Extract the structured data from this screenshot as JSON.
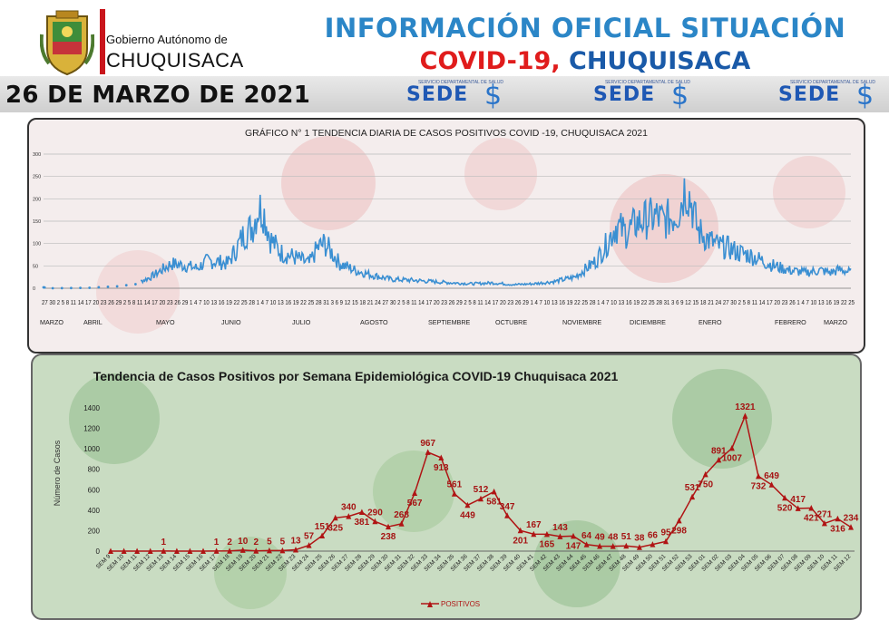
{
  "header": {
    "gob_label": "Gobierno Autónomo de",
    "dep_label": "CHUQUISACA",
    "title_line1": "INFORMACIÓN OFICIAL SITUACIÓN",
    "title_line2_red": "COVID-19,",
    "title_line2_blue": " CHUQUISACA",
    "date": "26 DE MARZO DE 2021",
    "sedes_label": "SEDE",
    "sedes_symbol": "$",
    "sedes_small": "SERVICIO DEPARTAMENTAL DE SALUD"
  },
  "colors": {
    "title_blue": "#2b86c7",
    "red": "#e01c1c",
    "line_blue": "#3a8fd2",
    "weekly_red": "#b01414"
  },
  "chart_data": [
    {
      "type": "line",
      "title": "GRÁFICO N° 1 TENDENCIA DIARIA DE CASOS POSITIVOS COVID -19, CHUQUISACA 2021",
      "ylim": [
        0,
        300
      ],
      "yticks": [
        "0",
        "50",
        "100",
        "150",
        "200",
        "250",
        "300"
      ],
      "grid": true,
      "months": [
        "MARZO",
        "ABRIL",
        "MAYO",
        "JUNIO",
        "JULIO",
        "AGOSTO",
        "SEPTIEMBRE",
        "OCTUBRE",
        "NOVIEMBRE",
        "DICIEMBRE",
        "ENERO",
        "FEBRERO",
        "MARZO"
      ],
      "day_ticks": "27 30 2 5 8 11 14 17 20 23 26 29 2 5 8 11 14 17 20 23 26 29 1 4 7 10 13 16 19 22 25 28 1 4 7 10 13 16 19 22 25 28 31 3 6 9 12 15 18 21 24 27 30 2 5 8 11 14 17 20 23 26 29 2 5 8 11 14 17 20 23 26 29 1 4 7 10 13 16 19 22 25 28 1 4 7 10 13 16 19 22 25 28 31 3 6 9 12 15 18 21 24 27 30 2 5 8 11 14 17 20 23 26 1 4 7 10 13 16 19 22 25",
      "anchors": [
        [
          0,
          2
        ],
        [
          8,
          0
        ],
        [
          45,
          1
        ],
        [
          60,
          3
        ],
        [
          78,
          5
        ],
        [
          95,
          15
        ],
        [
          105,
          25
        ],
        [
          115,
          40
        ],
        [
          125,
          55
        ],
        [
          140,
          50
        ],
        [
          150,
          45
        ],
        [
          160,
          60
        ],
        [
          170,
          60
        ],
        [
          180,
          55
        ],
        [
          188,
          85
        ],
        [
          196,
          120
        ],
        [
          205,
          140
        ],
        [
          210,
          180
        ],
        [
          215,
          175
        ],
        [
          222,
          110
        ],
        [
          232,
          80
        ],
        [
          245,
          70
        ],
        [
          260,
          55
        ],
        [
          268,
          90
        ],
        [
          275,
          100
        ],
        [
          282,
          80
        ],
        [
          290,
          55
        ],
        [
          305,
          40
        ],
        [
          320,
          30
        ],
        [
          340,
          20
        ],
        [
          360,
          18
        ],
        [
          380,
          15
        ],
        [
          400,
          12
        ],
        [
          420,
          10
        ],
        [
          440,
          12
        ],
        [
          460,
          8
        ],
        [
          480,
          10
        ],
        [
          500,
          15
        ],
        [
          520,
          25
        ],
        [
          540,
          60
        ],
        [
          550,
          95
        ],
        [
          560,
          140
        ],
        [
          570,
          125
        ],
        [
          580,
          145
        ],
        [
          590,
          155
        ],
        [
          600,
          160
        ],
        [
          607,
          150
        ],
        [
          615,
          160
        ],
        [
          622,
          175
        ],
        [
          628,
          230
        ],
        [
          633,
          200
        ],
        [
          640,
          130
        ],
        [
          650,
          110
        ],
        [
          660,
          95
        ],
        [
          670,
          90
        ],
        [
          680,
          80
        ],
        [
          690,
          75
        ],
        [
          700,
          65
        ],
        [
          715,
          50
        ],
        [
          730,
          40
        ],
        [
          745,
          35
        ],
        [
          760,
          40
        ],
        [
          770,
          35
        ],
        [
          780,
          42
        ],
        [
          790,
          35
        ]
      ]
    },
    {
      "type": "line",
      "title": "Tendencia de Casos Positivos por Semana Epidemiológica COVID-19 Chuquisaca 2021",
      "ylabel": "Número de Casos",
      "ylim": [
        0,
        1400
      ],
      "yticks": [
        "0",
        "200",
        "400",
        "600",
        "800",
        "1000",
        "1200",
        "1400"
      ],
      "legend": "POSITIVOS",
      "categories": [
        "SEM 9",
        "SEM 10",
        "SEM 11",
        "SEM 12",
        "SEM 13",
        "SEM 14",
        "SEM 15",
        "SEM 16",
        "SEM 17",
        "SEM 18",
        "SEM 19",
        "SEM 20",
        "SEM 21",
        "SEM 22",
        "SEM 23",
        "SEM 24",
        "SEM 25",
        "SEM 26",
        "SEM 27",
        "SEM 28",
        "SEM 29",
        "SEM 30",
        "SEM 31",
        "SEM 32",
        "SEM 33",
        "SEM 34",
        "SEM 35",
        "SEM 36",
        "SEM 37",
        "SEM 38",
        "SEM 39",
        "SEM 40",
        "SEM 41",
        "SEM 42",
        "SEM 43",
        "SEM 44",
        "SEM 45",
        "SEM 46",
        "SEM 47",
        "SEM 48",
        "SEM 49",
        "SEM 50",
        "SEM 51",
        "SEM 52",
        "SEM 53",
        "SEM 01",
        "SEM 02",
        "SEM 03",
        "SEM 04",
        "SEM 05",
        "SEM 06",
        "SEM 07",
        "SEM 08",
        "SEM 09",
        "SEM 10",
        "SEM 11",
        "SEM 12"
      ],
      "values": [
        0,
        0,
        0,
        0,
        1,
        0,
        0,
        0,
        1,
        2,
        10,
        2,
        5,
        5,
        13,
        57,
        151,
        325,
        340,
        381,
        290,
        238,
        268,
        567,
        967,
        913,
        561,
        449,
        512,
        581,
        347,
        201,
        167,
        165,
        143,
        147,
        64,
        49,
        48,
        51,
        38,
        66,
        95,
        298,
        531,
        750,
        891,
        1007,
        1321,
        732,
        649,
        520,
        417,
        421,
        271,
        316,
        234
      ],
      "labels": [
        {
          "i": 4,
          "t": "1"
        },
        {
          "i": 8,
          "t": "1"
        },
        {
          "i": 9,
          "t": "2"
        },
        {
          "i": 10,
          "t": "10"
        },
        {
          "i": 11,
          "t": "2"
        },
        {
          "i": 12,
          "t": "5"
        },
        {
          "i": 13,
          "t": "5"
        },
        {
          "i": 14,
          "t": "13"
        },
        {
          "i": 15,
          "t": "57"
        },
        {
          "i": 16,
          "t": "151"
        },
        {
          "i": 17,
          "t": "325"
        },
        {
          "i": 18,
          "t": "340"
        },
        {
          "i": 19,
          "t": "381"
        },
        {
          "i": 20,
          "t": "290"
        },
        {
          "i": 21,
          "t": "238"
        },
        {
          "i": 22,
          "t": "268"
        },
        {
          "i": 23,
          "t": "567"
        },
        {
          "i": 24,
          "t": "967"
        },
        {
          "i": 25,
          "t": "913"
        },
        {
          "i": 26,
          "t": "561"
        },
        {
          "i": 27,
          "t": "449"
        },
        {
          "i": 28,
          "t": "512"
        },
        {
          "i": 29,
          "t": "581"
        },
        {
          "i": 30,
          "t": "347"
        },
        {
          "i": 31,
          "t": "201"
        },
        {
          "i": 32,
          "t": "167"
        },
        {
          "i": 33,
          "t": "165"
        },
        {
          "i": 34,
          "t": "143"
        },
        {
          "i": 35,
          "t": "147"
        },
        {
          "i": 36,
          "t": "64"
        },
        {
          "i": 37,
          "t": "49"
        },
        {
          "i": 38,
          "t": "48"
        },
        {
          "i": 39,
          "t": "51"
        },
        {
          "i": 40,
          "t": "38"
        },
        {
          "i": 41,
          "t": "66"
        },
        {
          "i": 42,
          "t": "95"
        },
        {
          "i": 43,
          "t": "298"
        },
        {
          "i": 44,
          "t": "531"
        },
        {
          "i": 45,
          "t": "750"
        },
        {
          "i": 46,
          "t": "891"
        },
        {
          "i": 47,
          "t": "1007"
        },
        {
          "i": 48,
          "t": "1321"
        },
        {
          "i": 49,
          "t": "732"
        },
        {
          "i": 50,
          "t": "649"
        },
        {
          "i": 51,
          "t": "520"
        },
        {
          "i": 52,
          "t": "417"
        },
        {
          "i": 53,
          "t": "421"
        },
        {
          "i": 54,
          "t": "271"
        },
        {
          "i": 55,
          "t": "316"
        },
        {
          "i": 56,
          "t": "234"
        }
      ]
    }
  ]
}
